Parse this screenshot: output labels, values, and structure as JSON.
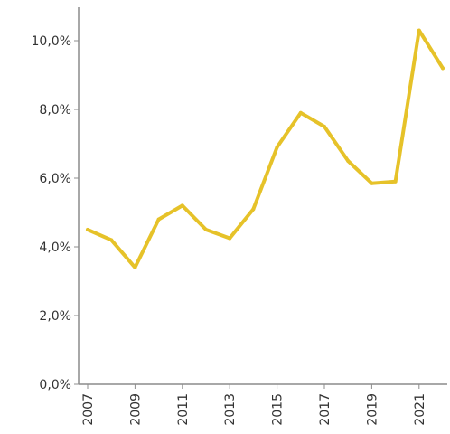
{
  "chart_data": {
    "type": "line",
    "x": [
      2007,
      2008,
      2009,
      2010,
      2011,
      2012,
      2013,
      2014,
      2015,
      2016,
      2017,
      2018,
      2019,
      2020,
      2021,
      2022
    ],
    "series": [
      {
        "values": [
          4.5,
          4.2,
          3.4,
          4.8,
          5.2,
          4.5,
          4.25,
          5.1,
          6.9,
          7.9,
          7.5,
          6.5,
          5.85,
          5.9,
          10.3,
          9.2
        ],
        "color": "#e6c229"
      }
    ],
    "ylim": [
      0,
      10.5
    ],
    "y_ticks": [
      "0,0%",
      "2,0%",
      "4,0%",
      "6,0%",
      "8,0%",
      "10,0%"
    ],
    "y_tick_values": [
      0,
      2,
      4,
      6,
      8,
      10
    ],
    "x_tick_labels": [
      "2007",
      "2009",
      "2011",
      "2013",
      "2015",
      "2017",
      "2019",
      "2021"
    ],
    "x_tick_values": [
      2007,
      2009,
      2011,
      2013,
      2015,
      2017,
      2019,
      2021
    ],
    "grid": false,
    "title": "",
    "xlabel": "",
    "ylabel": ""
  }
}
